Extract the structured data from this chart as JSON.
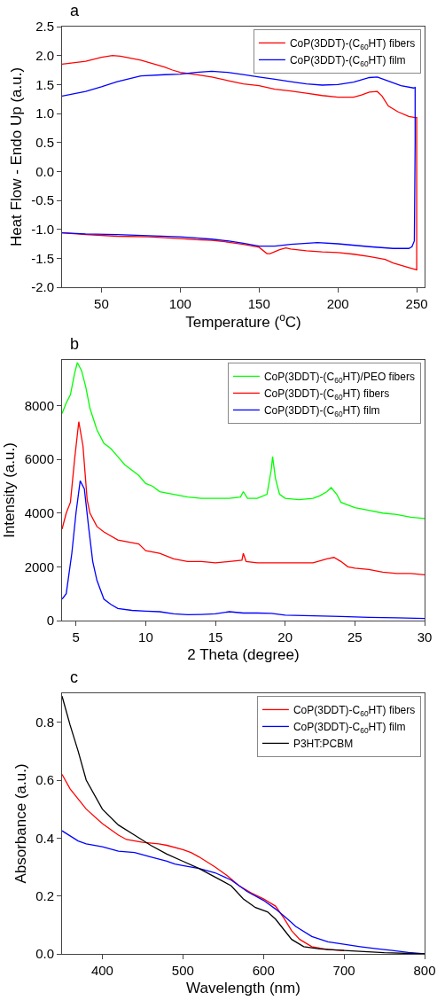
{
  "chart_data": [
    {
      "type": "line",
      "title": "a",
      "xlabel": "Temperature ($^{o}$C)",
      "ylabel": "Heat Flow - Endo Up (a.u.)",
      "xlim": [
        25,
        255
      ],
      "xticks": [
        50,
        100,
        150,
        200,
        250
      ],
      "ylim": [
        -2,
        2.5
      ],
      "yticks": [
        {
          "value": -2,
          "label": "-2.0"
        },
        {
          "value": -1.5,
          "label": "-1.5"
        },
        {
          "value": -1,
          "label": "-1.0"
        },
        {
          "value": -0.5,
          "label": "-0.5"
        },
        {
          "value": 0,
          "label": "0.0"
        },
        {
          "value": 0.5,
          "label": "0.5"
        },
        {
          "value": 1,
          "label": "1.0"
        },
        {
          "value": 1.5,
          "label": "1.5"
        },
        {
          "value": 2,
          "label": "2.0"
        },
        {
          "value": 2.5,
          "label": "2.5"
        }
      ],
      "grid": false,
      "legend": "top right",
      "series": [
        {
          "name": "CoP(3DDT)-(C$_{60}$HT) fibers",
          "color": "#ff0000",
          "x": [
            25,
            40,
            50,
            57,
            62,
            75,
            90,
            95,
            100,
            110,
            120,
            130,
            140,
            150,
            160,
            170,
            180,
            190,
            200,
            210,
            215,
            220,
            225,
            228,
            232,
            238,
            245,
            249,
            250,
            250,
            250,
            245,
            235,
            230,
            220,
            210,
            200,
            190,
            180,
            170,
            167,
            163,
            157,
            155,
            150,
            140,
            130,
            120,
            110,
            100,
            80,
            60,
            40,
            25
          ],
          "values": [
            1.85,
            1.9,
            1.97,
            2.0,
            1.99,
            1.92,
            1.8,
            1.75,
            1.71,
            1.67,
            1.63,
            1.57,
            1.51,
            1.48,
            1.42,
            1.39,
            1.35,
            1.31,
            1.28,
            1.28,
            1.32,
            1.37,
            1.38,
            1.3,
            1.13,
            1.03,
            0.95,
            0.93,
            0.93,
            0.2,
            -1.7,
            -1.66,
            -1.58,
            -1.52,
            -1.47,
            -1.43,
            -1.4,
            -1.39,
            -1.37,
            -1.34,
            -1.32,
            -1.35,
            -1.42,
            -1.42,
            -1.31,
            -1.26,
            -1.22,
            -1.19,
            -1.18,
            -1.16,
            -1.13,
            -1.12,
            -1.09,
            -1.06
          ]
        },
        {
          "name": "CoP(3DDT)-(C$_{60}$HT) film",
          "color": "#0000ff",
          "x": [
            25,
            40,
            50,
            60,
            75,
            90,
            100,
            110,
            120,
            130,
            140,
            150,
            160,
            170,
            180,
            190,
            200,
            210,
            220,
            225,
            230,
            240,
            248,
            249,
            249,
            248.5,
            247,
            245,
            235,
            220,
            200,
            187,
            170,
            160,
            150,
            140,
            130,
            120,
            100,
            80,
            60,
            40,
            25
          ],
          "values": [
            1.3,
            1.38,
            1.46,
            1.55,
            1.65,
            1.67,
            1.68,
            1.71,
            1.73,
            1.71,
            1.67,
            1.63,
            1.59,
            1.55,
            1.51,
            1.49,
            1.5,
            1.54,
            1.62,
            1.63,
            1.58,
            1.48,
            1.44,
            1.45,
            0.5,
            -1.2,
            -1.3,
            -1.33,
            -1.33,
            -1.3,
            -1.25,
            -1.23,
            -1.26,
            -1.29,
            -1.29,
            -1.24,
            -1.2,
            -1.17,
            -1.13,
            -1.11,
            -1.09,
            -1.08,
            -1.06
          ]
        }
      ]
    },
    {
      "type": "line",
      "title": "b",
      "xlabel": "2 Theta (degree)",
      "ylabel": "Intensity (a.u.)",
      "xlim": [
        4,
        30
      ],
      "xticks": [
        5,
        10,
        15,
        20,
        25,
        30
      ],
      "ylim": [
        0,
        9700
      ],
      "yticks": [
        0,
        2000,
        4000,
        6000,
        8000
      ],
      "grid": false,
      "legend": "top right",
      "series": [
        {
          "name": "CoP(3DDT)-(C$_{60}$HT)/PEO fibers",
          "color": "#00ff00",
          "x": [
            4,
            4.3,
            4.6,
            4.9,
            5.1,
            5.4,
            5.7,
            6,
            6.5,
            7,
            7.5,
            8,
            8.5,
            9,
            9.5,
            10,
            10.5,
            11,
            12,
            13,
            14,
            15,
            16,
            16.8,
            17,
            17.3,
            18,
            18.7,
            19,
            19.1,
            19.3,
            19.6,
            20,
            21,
            22,
            22.5,
            23,
            23.3,
            23.7,
            24,
            25,
            26,
            27,
            28,
            29,
            30
          ],
          "values": [
            7700,
            8100,
            8400,
            9200,
            9600,
            9300,
            8700,
            7900,
            7100,
            6600,
            6400,
            6100,
            5800,
            5600,
            5400,
            5100,
            5000,
            4800,
            4700,
            4600,
            4550,
            4550,
            4550,
            4600,
            4800,
            4550,
            4550,
            4700,
            5600,
            6100,
            5300,
            4700,
            4550,
            4500,
            4550,
            4650,
            4800,
            4950,
            4700,
            4400,
            4200,
            4100,
            4000,
            3950,
            3850,
            3800
          ]
        },
        {
          "name": "CoP(3DDT)-(C$_{60}$HT) fibers",
          "color": "#ff0000",
          "x": [
            4,
            4.3,
            4.6,
            4.9,
            5.2,
            5.5,
            5.8,
            6,
            6.5,
            7,
            8,
            9,
            9.5,
            10,
            11,
            12,
            13,
            14,
            15,
            16,
            16.9,
            17,
            17.2,
            18,
            19,
            20,
            21,
            22,
            23,
            23.5,
            24,
            24.5,
            25,
            26,
            27,
            28,
            29,
            30
          ],
          "values": [
            3400,
            4000,
            4400,
            6000,
            7400,
            6500,
            4500,
            4000,
            3500,
            3300,
            3000,
            2900,
            2850,
            2600,
            2500,
            2300,
            2200,
            2200,
            2150,
            2200,
            2250,
            2500,
            2200,
            2150,
            2150,
            2150,
            2150,
            2150,
            2300,
            2350,
            2200,
            2000,
            1950,
            1900,
            1800,
            1750,
            1750,
            1700
          ]
        },
        {
          "name": "CoP(3DDT)-(C$_{60}$HT) film",
          "color": "#0000ff",
          "x": [
            4,
            4.3,
            4.7,
            5,
            5.3,
            5.6,
            5.9,
            6.2,
            6.5,
            7,
            7.5,
            8,
            9,
            10,
            11,
            12,
            13,
            14,
            15,
            16,
            17,
            18,
            19,
            20,
            22,
            24,
            26,
            28,
            30
          ],
          "values": [
            800,
            1000,
            2500,
            4000,
            5200,
            4900,
            3500,
            2200,
            1500,
            800,
            600,
            450,
            380,
            350,
            330,
            250,
            220,
            230,
            250,
            330,
            280,
            280,
            270,
            200,
            180,
            150,
            120,
            100,
            80
          ]
        }
      ]
    },
    {
      "type": "line",
      "title": "c",
      "xlabel": "Wavelength (nm)",
      "ylabel": "Absorbance (a.u.)",
      "xlim": [
        350,
        800
      ],
      "xticks": [
        400,
        500,
        600,
        700,
        800
      ],
      "ylim": [
        0,
        0.9
      ],
      "yticks": [
        {
          "value": 0,
          "label": "0.0"
        },
        0.2,
        0.4,
        0.6,
        0.8
      ],
      "grid": false,
      "legend": "top right",
      "series": [
        {
          "name": "CoP(3DDT)-C$_{60}$HT) fibers",
          "color": "#ff0000",
          "x": [
            350,
            360,
            380,
            400,
            420,
            430,
            450,
            470,
            480,
            500,
            510,
            520,
            540,
            555,
            570,
            585,
            600,
            615,
            625,
            635,
            645,
            660,
            680,
            700
          ],
          "values": [
            0.62,
            0.57,
            0.5,
            0.45,
            0.41,
            0.395,
            0.385,
            0.38,
            0.375,
            0.36,
            0.35,
            0.335,
            0.3,
            0.27,
            0.235,
            0.21,
            0.19,
            0.165,
            0.125,
            0.08,
            0.05,
            0.025,
            0.015,
            0.012
          ]
        },
        {
          "name": "CoP(3DDT)-C$_{60}$HT) film",
          "color": "#0000ff",
          "x": [
            350,
            370,
            380,
            400,
            420,
            440,
            460,
            480,
            490,
            500,
            520,
            540,
            560,
            580,
            600,
            615,
            630,
            640,
            660,
            680,
            700,
            720,
            740,
            760,
            780,
            800
          ],
          "values": [
            0.425,
            0.39,
            0.38,
            0.37,
            0.355,
            0.35,
            0.335,
            0.32,
            0.31,
            0.305,
            0.295,
            0.28,
            0.255,
            0.215,
            0.185,
            0.155,
            0.12,
            0.095,
            0.06,
            0.042,
            0.033,
            0.025,
            0.018,
            0.012,
            0.005,
            0.0
          ]
        },
        {
          "name": "P3HT:PCBM",
          "color": "#000000",
          "x": [
            350,
            360,
            370,
            380,
            400,
            420,
            440,
            460,
            480,
            500,
            520,
            540,
            560,
            575,
            590,
            605,
            615,
            625,
            635,
            650,
            670,
            700,
            750,
            800
          ],
          "values": [
            0.89,
            0.79,
            0.7,
            0.6,
            0.5,
            0.445,
            0.41,
            0.375,
            0.345,
            0.32,
            0.295,
            0.265,
            0.235,
            0.19,
            0.16,
            0.145,
            0.12,
            0.085,
            0.05,
            0.025,
            0.017,
            0.012,
            0.004,
            0.0
          ]
        }
      ]
    }
  ]
}
